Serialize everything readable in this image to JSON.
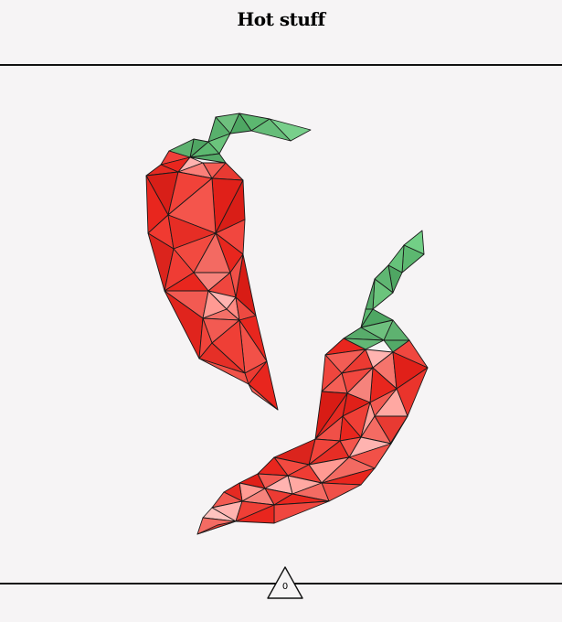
{
  "header": {
    "title": "Hot stuff"
  },
  "counter": {
    "value": "0"
  },
  "colors": {
    "background": "#f6f4f5",
    "pepper_red": "#e8261e",
    "pepper_stem": "#5cb870",
    "outline": "#111111"
  },
  "art": {
    "subject_icons": [
      "chili-pepper-icon",
      "chili-pepper-icon"
    ]
  }
}
